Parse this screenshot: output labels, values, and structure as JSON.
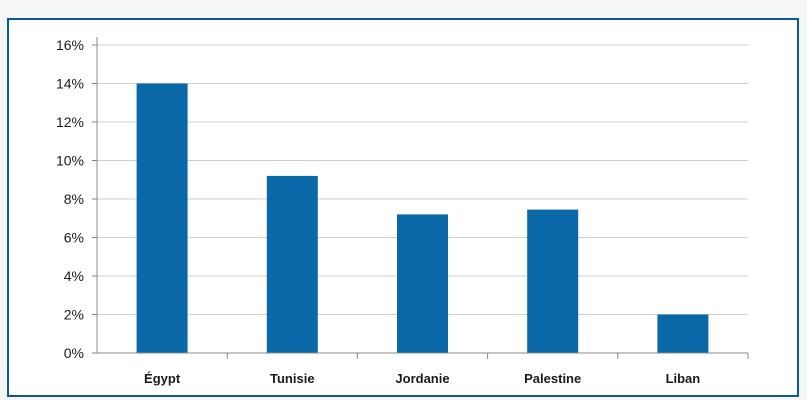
{
  "chart_data": {
    "type": "bar",
    "categories": [
      "Égypt",
      "Tunisie",
      "Jordanie",
      "Palestine",
      "Liban"
    ],
    "values": [
      0.14,
      0.092,
      0.072,
      0.0745,
      0.02
    ],
    "ylim": [
      0,
      0.16
    ],
    "yticks": [
      0,
      0.02,
      0.04,
      0.06,
      0.08,
      0.1,
      0.12,
      0.14,
      0.16
    ],
    "ytick_labels": [
      "0%",
      "2%",
      "4%",
      "6%",
      "8%",
      "10%",
      "12%",
      "14%",
      "16%"
    ],
    "title": "",
    "xlabel": "",
    "ylabel": "",
    "grid": true,
    "bar_color": "#0a68a8",
    "frame_color": "#0a5a97",
    "grid_color": "#cfcfcf"
  }
}
